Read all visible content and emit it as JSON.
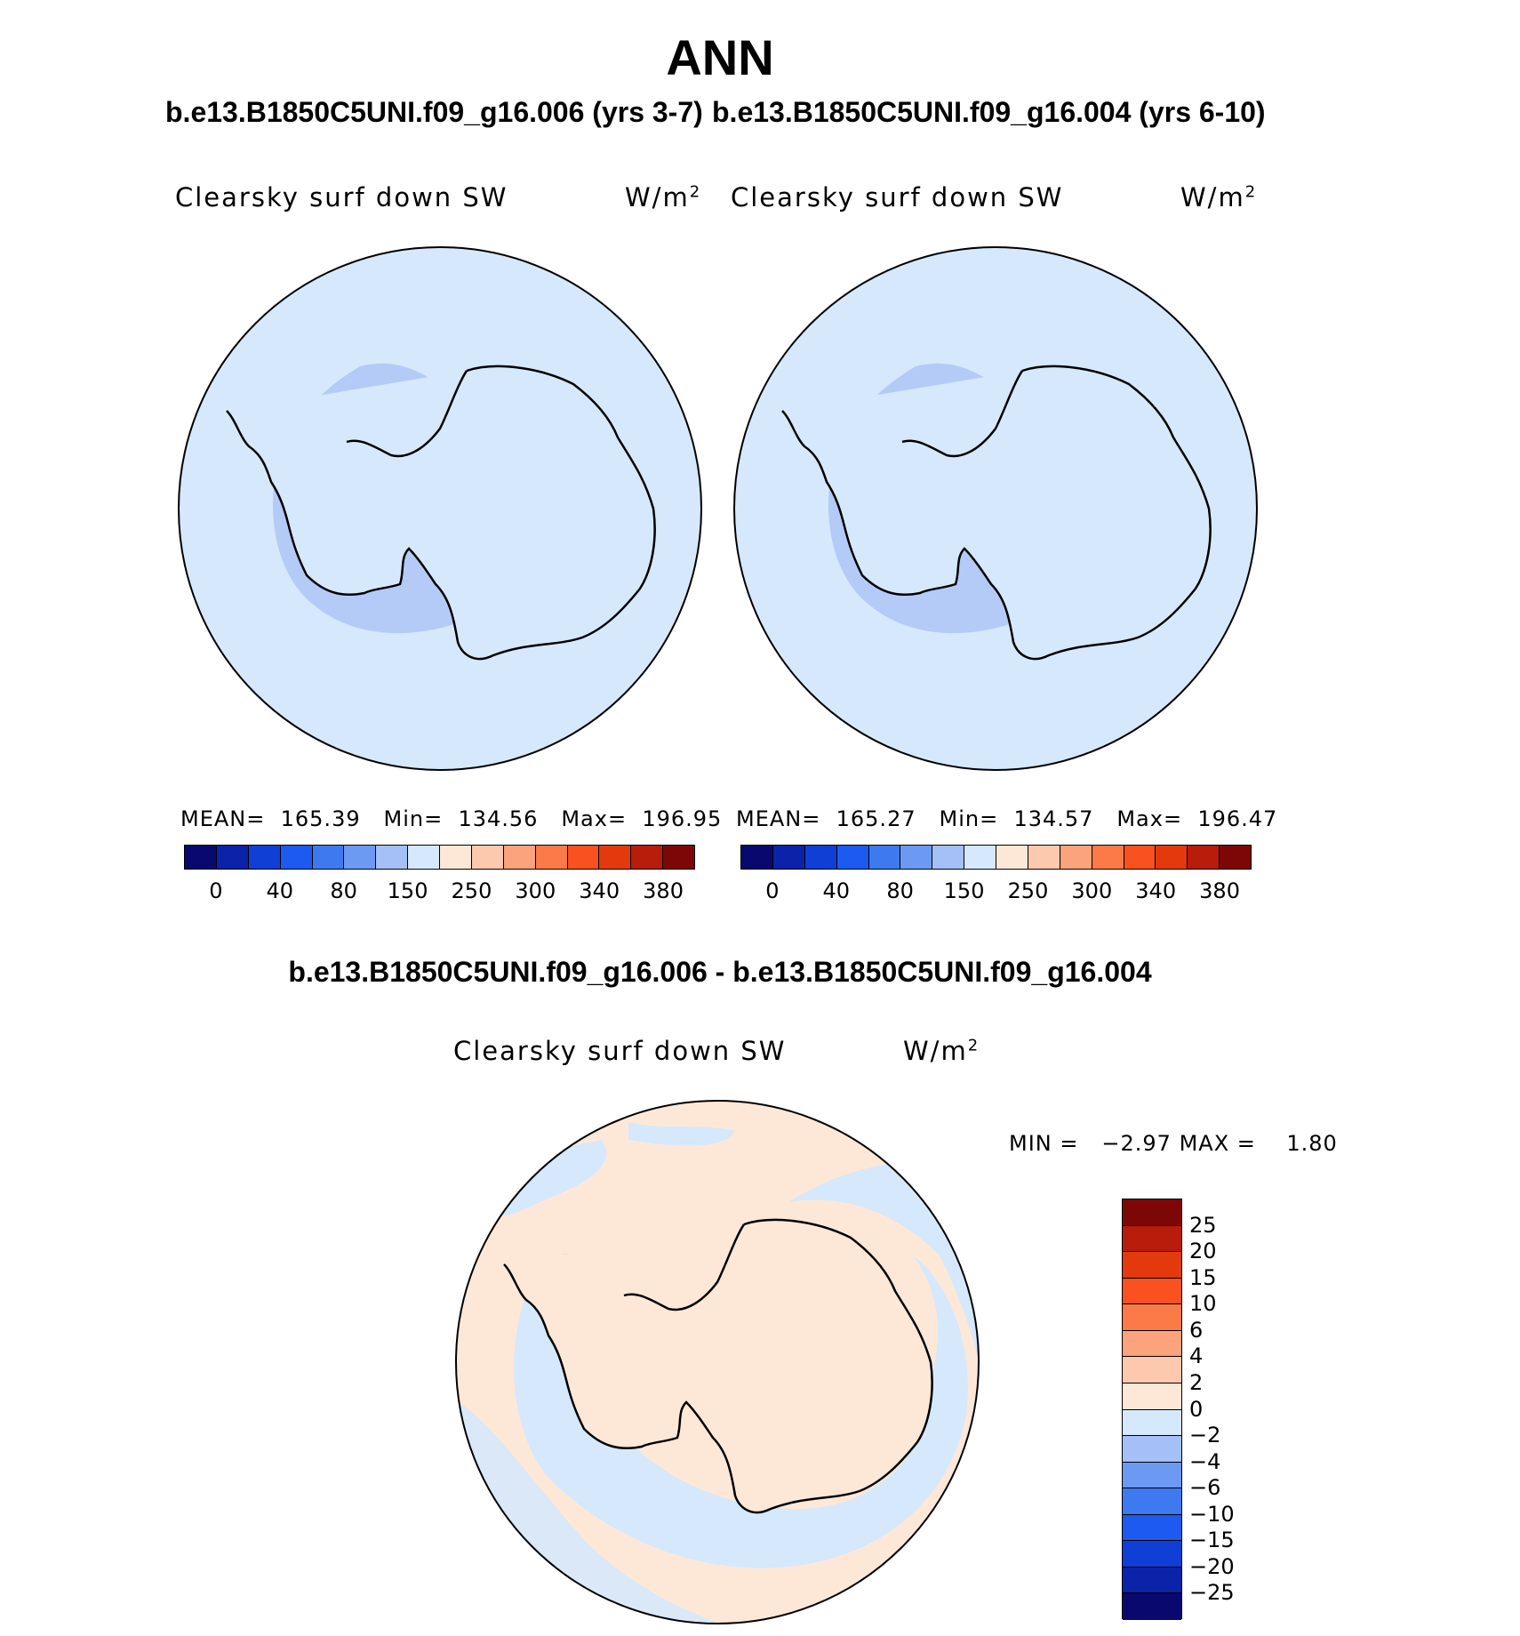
{
  "header": {
    "title": "ANN",
    "case_left": "b.e13.B1850C5UNI.f09_g16.006 (yrs 3-7)",
    "case_right": "b.e13.B1850C5UNI.f09_g16.004 (yrs 6-10)",
    "diff_title": "b.e13.B1850C5UNI.f09_g16.006 - b.e13.B1850C5UNI.f09_g16.004"
  },
  "panels": [
    {
      "variable": "Clearsky surf down SW",
      "units_base": "W/m",
      "units_sup": "2",
      "stats": {
        "mean_label": "MEAN=",
        "mean": "165.39",
        "min_label": "Min=",
        "min": "134.56",
        "max_label": "Max=",
        "max": "196.95"
      }
    },
    {
      "variable": "Clearsky surf down SW",
      "units_base": "W/m",
      "units_sup": "2",
      "stats": {
        "mean_label": "MEAN=",
        "mean": "165.27",
        "min_label": "Min=",
        "min": "134.57",
        "max_label": "Max=",
        "max": "196.47"
      }
    }
  ],
  "diff_panel": {
    "variable": "Clearsky surf down SW",
    "units_base": "W/m",
    "units_sup": "2",
    "min_label": "MIN =",
    "min": "−2.97",
    "max_label": "MAX =",
    "max": "1.80"
  },
  "colorbar_main": {
    "colors": [
      "#08086e",
      "#0a23a8",
      "#0f3fd6",
      "#1d5af0",
      "#3d7af0",
      "#6c9af2",
      "#a4c0f6",
      "#d6e8fb",
      "#fde8d8",
      "#fcc9ae",
      "#fba37d",
      "#fb7a48",
      "#f95120",
      "#e23a0c",
      "#b81c0a",
      "#7d0707"
    ],
    "ticks": [
      "0",
      "40",
      "80",
      "150",
      "250",
      "300",
      "340",
      "380"
    ]
  },
  "colorbar_diff": {
    "colors": [
      "#7d0707",
      "#b81c0a",
      "#e23a0c",
      "#f95120",
      "#fb7a48",
      "#fba37d",
      "#fcc9ae",
      "#fde8d8",
      "#d6e8fb",
      "#a4c0f6",
      "#6c9af2",
      "#3d7af0",
      "#1d5af0",
      "#0f3fd6",
      "#0a23a8",
      "#08086e"
    ],
    "ticks": [
      "25",
      "20",
      "15",
      "10",
      "6",
      "4",
      "2",
      "0",
      "−2",
      "−4",
      "−6",
      "−10",
      "−15",
      "−20",
      "−25"
    ]
  },
  "map_colors": {
    "ocean_main": "#d6e8fb",
    "low_region": "#b4cbf8",
    "diff_pos": "#fde8d8",
    "diff_neg": "#d6e8fb",
    "diff_neg2": "#a4c0f6"
  },
  "map_region": "Antarctica, south polar stereographic"
}
